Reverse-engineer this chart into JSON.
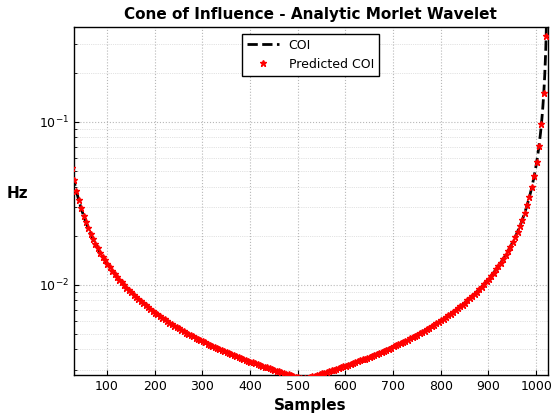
{
  "title": "Cone of Influence - Analytic Morlet Wavelet",
  "xlabel": "Samples",
  "ylabel": "Hz",
  "N": 1024,
  "fs": 1.0,
  "morlet_omega0": 6,
  "background_color": "#ffffff",
  "grid_color": "#b0b0b0",
  "coi_color": "#000000",
  "predicted_color": "#ff0000",
  "coi_linewidth": 2.0,
  "coi_linestyle": "--",
  "marker_style": "*",
  "marker_size": 5,
  "xlim": [
    30,
    1024
  ],
  "ylim": [
    0.0028,
    0.38
  ],
  "legend_loc": "upper center",
  "legend_labels": [
    "COI",
    "Predicted COI"
  ],
  "xticks": [
    100,
    200,
    300,
    400,
    500,
    600,
    700,
    800,
    900,
    1000
  ],
  "pred_step": 5
}
